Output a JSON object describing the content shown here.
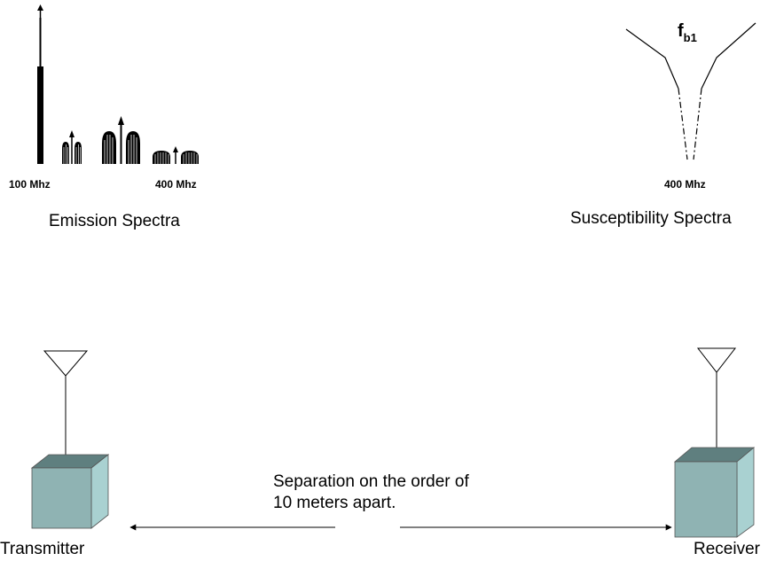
{
  "emission": {
    "freq_low": "100 Mhz",
    "freq_high": "400 Mhz",
    "caption": "Emission Spectra"
  },
  "susceptibility": {
    "symbol_main": "f",
    "symbol_sub": "b1",
    "freq": "400 Mhz",
    "caption": "Susceptibility Spectra"
  },
  "separation": {
    "line1": "Separation on the order of",
    "line2": "10 meters apart."
  },
  "devices": {
    "transmitter": "Transmitter",
    "receiver": "Receiver"
  },
  "colors": {
    "box_front": "#8fb3b3",
    "box_top": "#5f7f7f",
    "box_side": "#a9d1d1"
  }
}
